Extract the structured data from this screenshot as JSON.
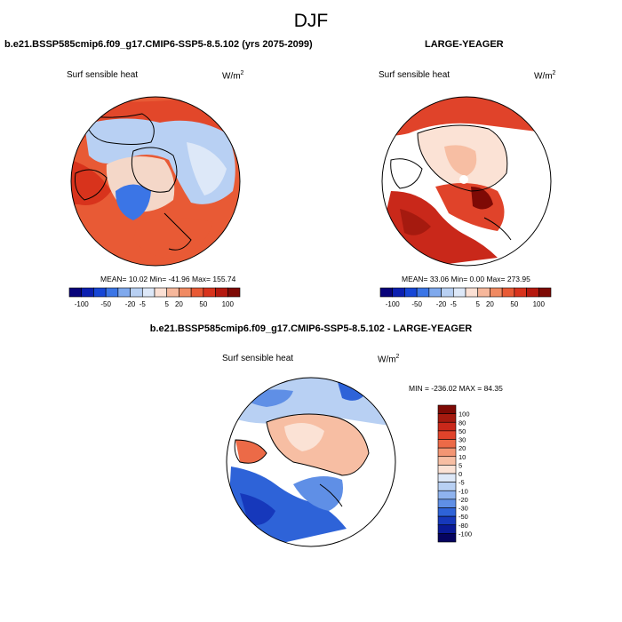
{
  "figure": {
    "title": "DJF"
  },
  "panels": [
    {
      "title": "b.e21.BSSP585cmip6.f09_g17.CMIP6-SSP5-8.5.102 (yrs 2075-2099)",
      "variable": "Surf sensible heat",
      "units_base": "W/m",
      "units_exp": "2",
      "stats": "MEAN=  10.02  Min= -41.96  Max= 155.74"
    },
    {
      "title": "LARGE-YEAGER",
      "variable": "Surf sensible heat",
      "units_base": "W/m",
      "units_exp": "2",
      "stats": "MEAN=  33.06  Min=   0.00  Max= 273.95"
    },
    {
      "title": "b.e21.BSSP585cmip6.f09_g17.CMIP6-SSP5-8.5.102 - LARGE-YEAGER",
      "variable": "Surf sensible heat",
      "units_base": "W/m",
      "units_exp": "2",
      "stats": "MIN = -236.02 MAX =  84.35"
    }
  ],
  "colorbars": {
    "horizontal": {
      "tick_labels": [
        "-100",
        "-50",
        "-20",
        "-5",
        "5",
        "20",
        "50",
        "100"
      ],
      "colors": [
        "#08037a",
        "#0b1fb0",
        "#1646d6",
        "#3b75e6",
        "#7fa9ed",
        "#b8d0f3",
        "#dde8f8",
        "#fbe0d4",
        "#f6b79b",
        "#f08a62",
        "#e85a35",
        "#d8331c",
        "#b5190f",
        "#7e0a05"
      ]
    },
    "vertical": {
      "tick_labels": [
        "100",
        "80",
        "50",
        "30",
        "20",
        "10",
        "5",
        "0",
        "-5",
        "-10",
        "-20",
        "-30",
        "-50",
        "-80",
        "-100"
      ],
      "colors": [
        "#7e0a05",
        "#a51a0f",
        "#c9281a",
        "#e0432a",
        "#ec6a47",
        "#f39573",
        "#f7bea3",
        "#fbe2d5",
        "#dde8f8",
        "#b8d0f3",
        "#8fb3ee",
        "#5f8fe6",
        "#2e63d8",
        "#1638bb",
        "#0a1a96",
        "#06045f"
      ]
    }
  }
}
